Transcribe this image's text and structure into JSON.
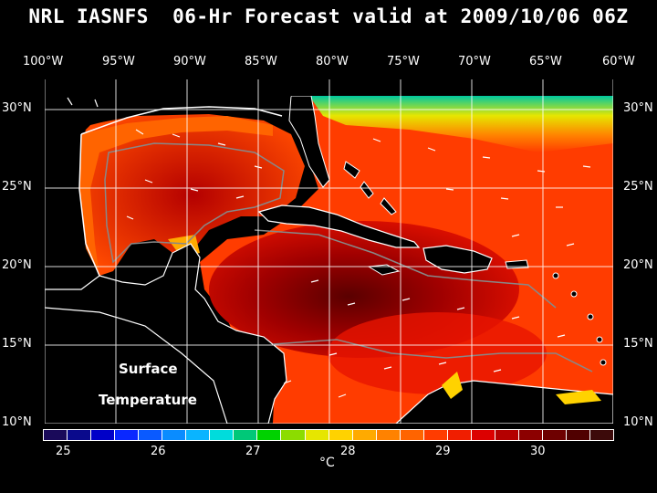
{
  "title": "NRL IASNFS  06-Hr Forecast valid at 2009/10/06 06Z",
  "top_lon_labels": [
    "100°W",
    "95°W",
    "90°W",
    "85°W",
    "80°W",
    "75°W",
    "70°W",
    "65°W",
    "60°W"
  ],
  "left_lat_labels": [
    "30°N",
    "25°N",
    "20°N",
    "15°N",
    "10°N"
  ],
  "right_lat_labels": [
    "30°N",
    "25°N",
    "20°N",
    "15°N",
    "10°N"
  ],
  "map_text": {
    "line1": "Surface",
    "line2": "Temperature"
  },
  "colorbar": {
    "colors": [
      "#1a0a5a",
      "#0a0a8c",
      "#0000c8",
      "#0a28ff",
      "#0a5aff",
      "#0a8cff",
      "#0ab4ff",
      "#00dcdc",
      "#00c878",
      "#00d200",
      "#8cdc00",
      "#e6e600",
      "#ffd200",
      "#ffaa00",
      "#ff8200",
      "#ff6400",
      "#ff3c00",
      "#f01e00",
      "#dc0000",
      "#b40000",
      "#8c0000",
      "#6e0000",
      "#500000",
      "#3c0a0a"
    ],
    "tick_labels": [
      "25",
      "26",
      "27",
      "28",
      "29",
      "30"
    ],
    "units": "°C"
  }
}
